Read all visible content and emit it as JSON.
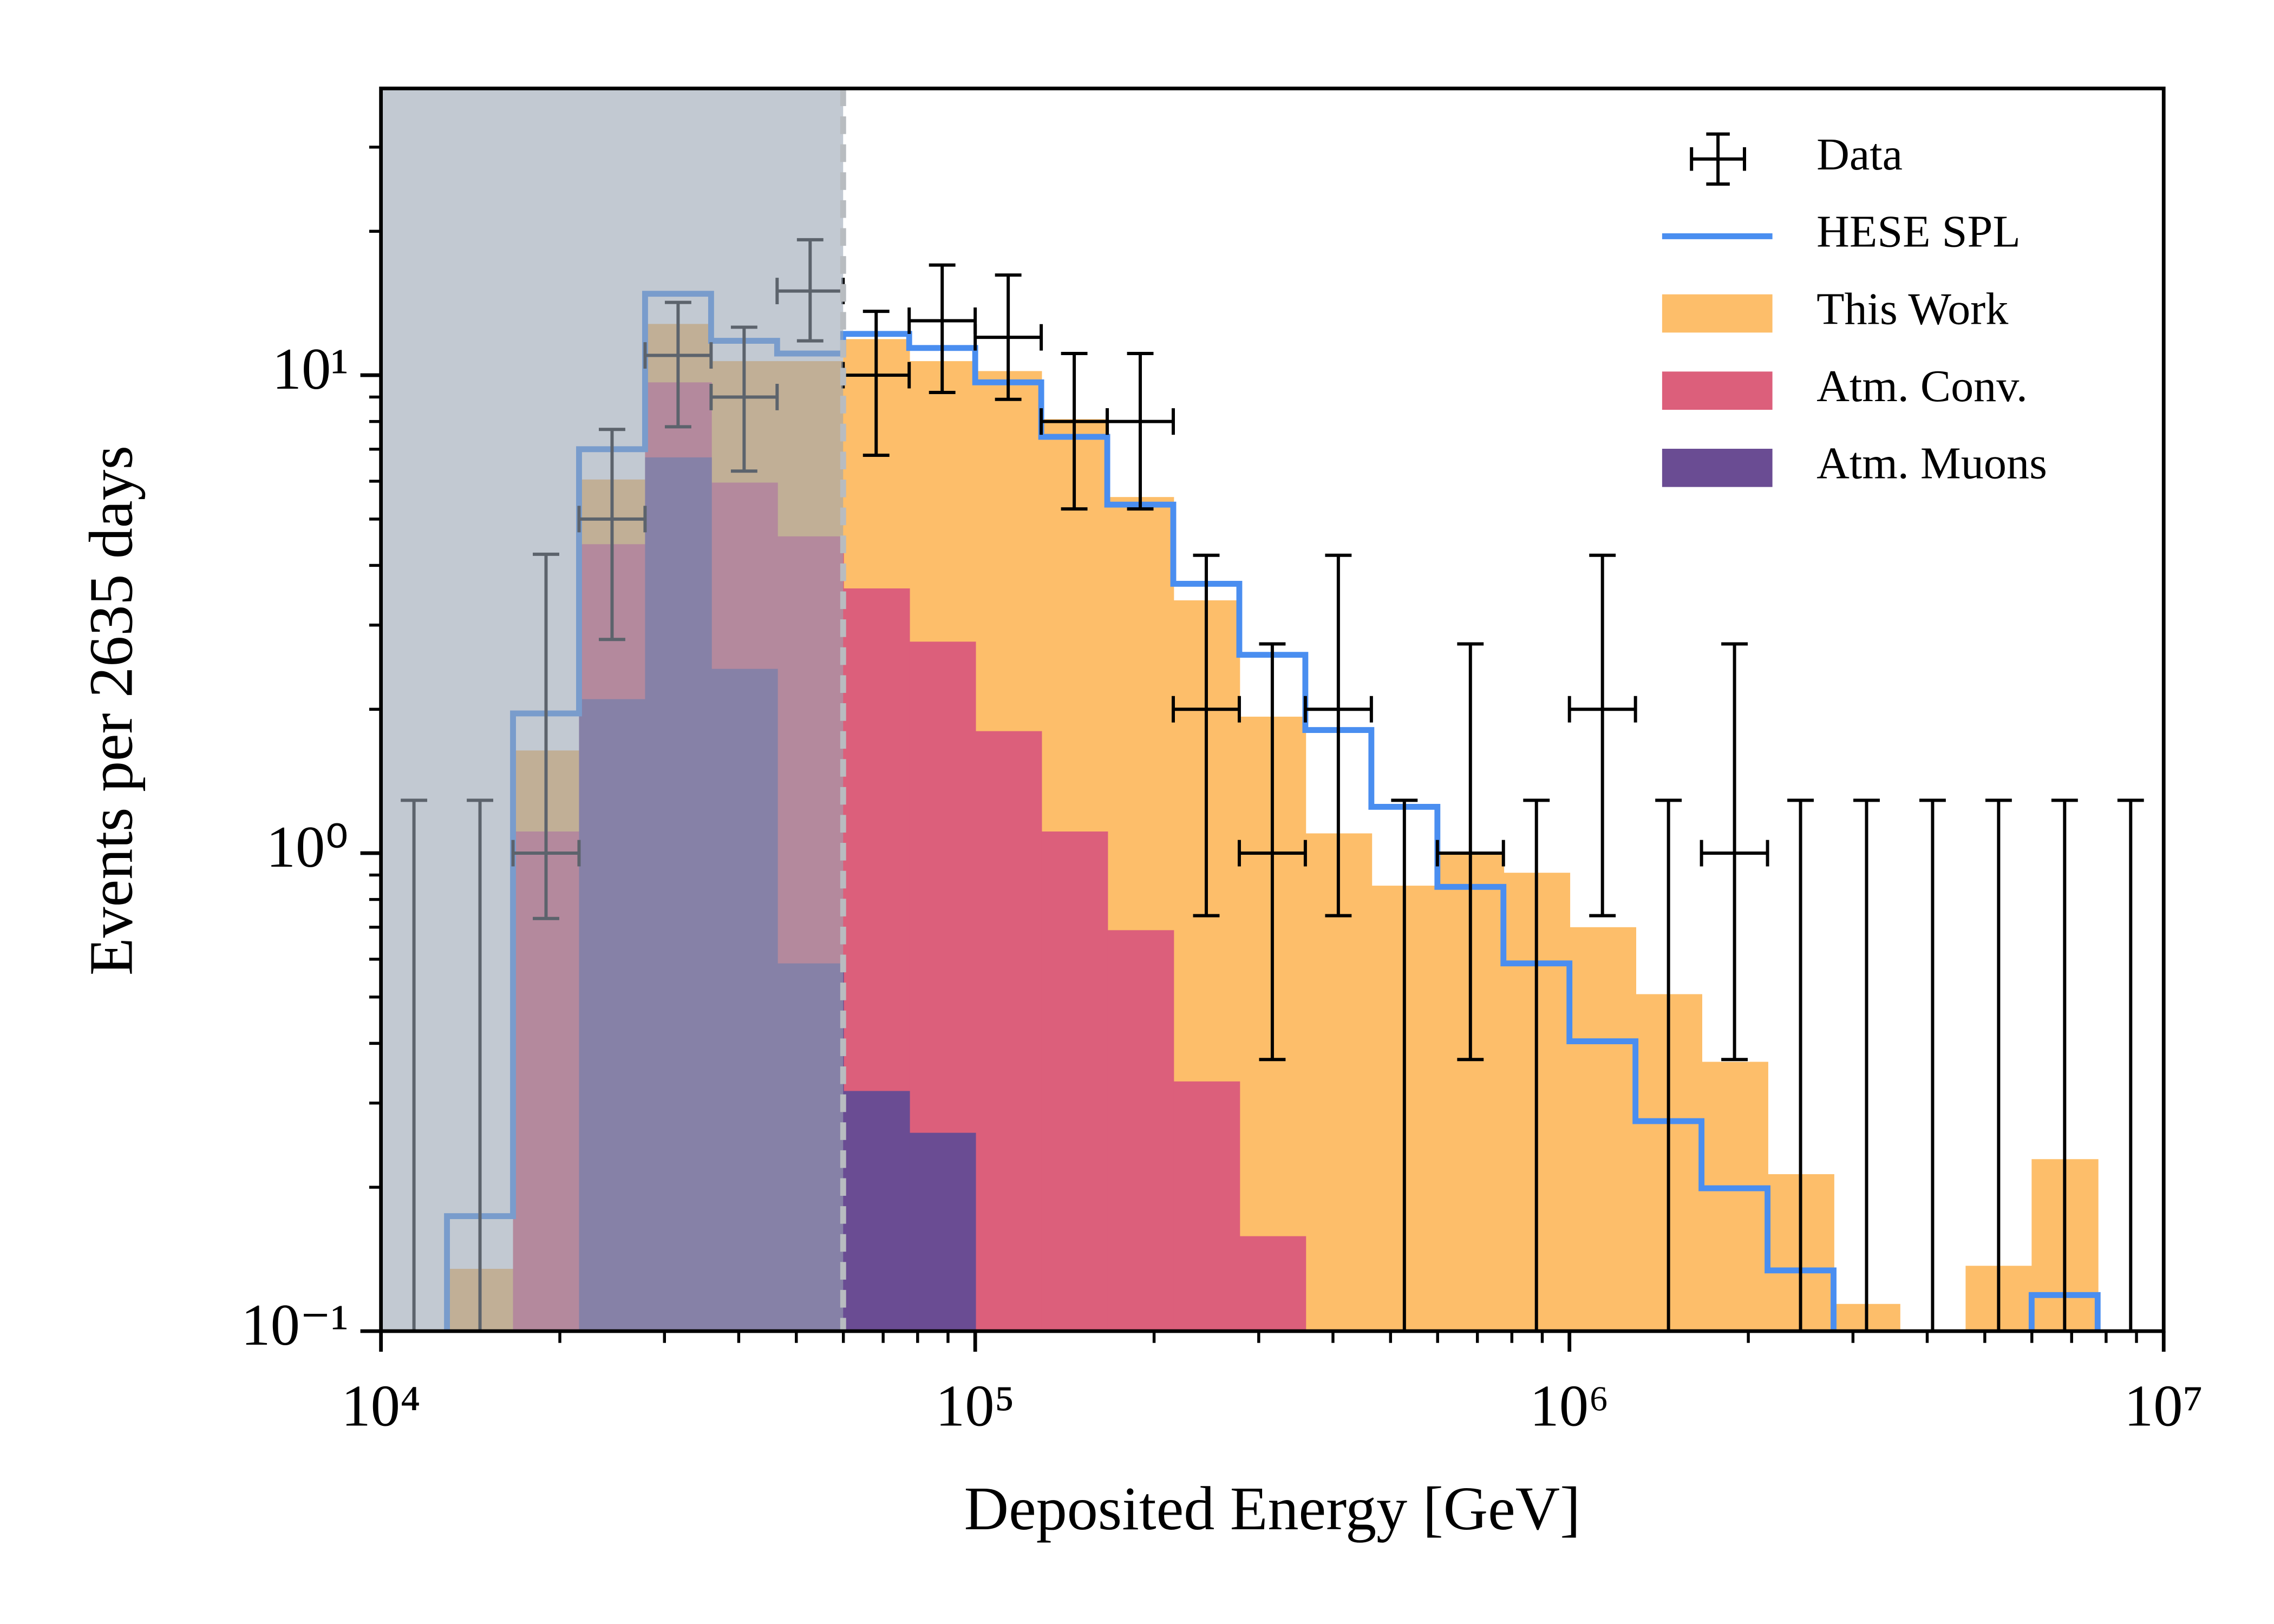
{
  "chart_data": {
    "type": "histogram",
    "xlabel": "Deposited Energy [GeV]",
    "ylabel": "Events per 2635 days",
    "xscale": "log",
    "yscale": "log",
    "xlim": [
      10000,
      10000000
    ],
    "ylim": [
      0.1,
      39.8
    ],
    "xticks": [
      {
        "value": 10000,
        "label": "10⁴"
      },
      {
        "value": 100000,
        "label": "10⁵"
      },
      {
        "value": 1000000,
        "label": "10⁶"
      },
      {
        "value": 10000000,
        "label": "10⁷"
      }
    ],
    "yticks": [
      {
        "value": 0.1,
        "label": "10⁻¹"
      },
      {
        "value": 1,
        "label": "10⁰"
      },
      {
        "value": 10,
        "label": "10¹"
      }
    ],
    "legend": "upper right",
    "shaded_xlim": [
      10000,
      59948
    ],
    "shade_color": "#9aa5b4",
    "bins": [
      10000,
      12915,
      16681,
      21544,
      27826,
      35938,
      46416,
      59948,
      77426,
      100000,
      129155,
      166810,
      215443,
      278256,
      359381,
      464159,
      599484,
      774264,
      1000000,
      1291550,
      1668101,
      2154435,
      2782559,
      3593814,
      4641589,
      5994843,
      7742637,
      10000000
    ],
    "data": {
      "name": "Data",
      "color": "#000000",
      "values": [
        0,
        0,
        1,
        5,
        11,
        9,
        15,
        10,
        13,
        12,
        8,
        8,
        2,
        1,
        2,
        0,
        1,
        0,
        2,
        0,
        1,
        0,
        0,
        0,
        0,
        0,
        0
      ],
      "yerr_low": [
        0,
        0,
        0.27,
        2.2,
        3.2,
        2.7,
        3.2,
        3.2,
        3.8,
        3.1,
        2.75,
        2.75,
        1.26,
        0.63,
        1.26,
        0,
        0.63,
        0,
        1.26,
        0,
        0.63,
        0,
        0,
        0,
        0,
        0,
        0
      ],
      "yerr_high": [
        1.29,
        1.29,
        3.22,
        2.7,
        3.2,
        3.6,
        4.2,
        3.6,
        4,
        4.2,
        3.1,
        3.1,
        2.2,
        1.74,
        2.2,
        1.29,
        1.74,
        1.29,
        2.2,
        1.29,
        1.74,
        1.29,
        1.29,
        1.29,
        1.29,
        1.29,
        1.29
      ]
    },
    "series": [
      {
        "name": "HESE SPL",
        "color": "#4a8ef0",
        "style": "step",
        "values": [
          null,
          0.174,
          1.96,
          7.0,
          14.8,
          11.8,
          11.1,
          12.2,
          11.4,
          9.66,
          7.43,
          5.36,
          3.66,
          2.6,
          1.81,
          1.25,
          0.85,
          0.588,
          0.404,
          0.275,
          0.199,
          0.134,
          null,
          null,
          null,
          0.119,
          null
        ]
      },
      {
        "name": "This Work",
        "color": "#fdbe6a",
        "style": "fill",
        "values": [
          null,
          0.135,
          1.64,
          6.05,
          12.8,
          10.7,
          10.7,
          11.9,
          10.7,
          10.2,
          8.09,
          5.56,
          3.38,
          1.93,
          1.1,
          0.855,
          1.0,
          0.91,
          0.7,
          0.507,
          0.366,
          0.213,
          0.114,
          null,
          0.137,
          0.229,
          null
        ]
      },
      {
        "name": "Atm. Conv.",
        "color": "#dc5f7b",
        "style": "fill",
        "values": [
          null,
          null,
          1.11,
          4.43,
          9.66,
          5.96,
          4.6,
          3.58,
          2.77,
          1.8,
          1.11,
          0.69,
          0.333,
          0.158,
          null,
          null,
          null,
          null,
          null,
          null,
          null,
          null,
          null,
          null,
          null,
          null,
          null
        ]
      },
      {
        "name": "Atm. Muons",
        "color": "#6a4c93",
        "style": "fill",
        "values": [
          null,
          null,
          null,
          2.1,
          6.73,
          2.43,
          0.588,
          0.318,
          0.26,
          null,
          null,
          null,
          null,
          null,
          null,
          null,
          null,
          null,
          null,
          null,
          null,
          null,
          null,
          null,
          null,
          null,
          null
        ]
      }
    ]
  }
}
